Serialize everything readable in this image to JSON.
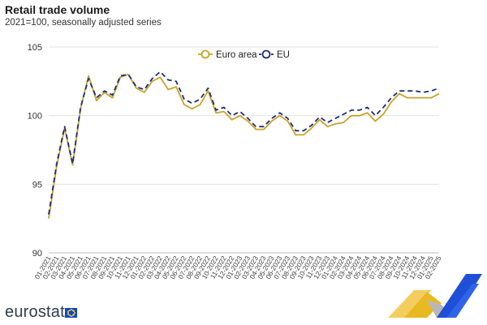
{
  "header": {
    "title": "Retail trade volume",
    "subtitle": "2021=100, seasonally adjusted series"
  },
  "brand": {
    "name": "eurostat"
  },
  "colors": {
    "euro_area": "#c9a227",
    "eu": "#1f2f7a",
    "grid": "#e3e3e3"
  },
  "chart_data": {
    "type": "line",
    "title": "Retail trade volume",
    "subtitle": "2021=100, seasonally adjusted series",
    "xlabel": "",
    "ylabel": "",
    "ylim": [
      90,
      105
    ],
    "yticks": [
      90,
      95,
      100,
      105
    ],
    "grid": true,
    "legend_position": "top-center",
    "categories": [
      "01-2021",
      "02-2021",
      "03-2021",
      "04-2021",
      "05-2021",
      "06-2021",
      "07-2021",
      "08-2021",
      "09-2021",
      "10-2021",
      "11-2021",
      "12-2021",
      "01-2022",
      "02-2022",
      "03-2022",
      "04-2022",
      "05-2022",
      "06-2022",
      "07-2022",
      "08-2022",
      "09-2022",
      "10-2022",
      "11-2022",
      "12-2022",
      "01-2023",
      "02-2023",
      "03-2023",
      "04-2023",
      "05-2023",
      "06-2023",
      "07-2023",
      "08-2023",
      "09-2023",
      "10-2023",
      "11-2023",
      "12-2023",
      "01-2024",
      "02-2024",
      "03-2024",
      "04-2024",
      "05-2024",
      "06-2024",
      "07-2024",
      "08-2024",
      "09-2024",
      "10-2024",
      "11-2024",
      "12-2024",
      "01-2025",
      "02-2025"
    ],
    "series": [
      {
        "name": "Euro area",
        "style": "solid",
        "values": [
          92.5,
          96.3,
          99.1,
          96.4,
          100.5,
          102.9,
          101.1,
          101.7,
          101.3,
          102.8,
          103.0,
          102.0,
          101.7,
          102.5,
          102.8,
          101.9,
          102.1,
          100.8,
          100.5,
          100.8,
          101.8,
          100.2,
          100.3,
          99.7,
          100.0,
          99.6,
          99.0,
          99.0,
          99.6,
          100.0,
          99.6,
          98.6,
          98.6,
          99.1,
          99.7,
          99.2,
          99.4,
          99.5,
          100.0,
          100.0,
          100.2,
          99.6,
          100.1,
          101.0,
          101.6,
          101.3,
          101.3,
          101.3,
          101.3,
          101.6
        ]
      },
      {
        "name": "EU",
        "style": "dashed",
        "values": [
          92.8,
          96.5,
          99.2,
          96.5,
          100.6,
          102.7,
          101.3,
          101.8,
          101.5,
          102.9,
          103.0,
          102.1,
          101.9,
          102.7,
          103.2,
          102.6,
          102.5,
          101.2,
          100.9,
          101.2,
          102.0,
          100.4,
          100.6,
          100.0,
          100.3,
          99.8,
          99.2,
          99.2,
          99.8,
          100.2,
          99.8,
          98.9,
          98.9,
          99.3,
          99.9,
          99.5,
          99.8,
          100.1,
          100.4,
          100.4,
          100.6,
          100.0,
          100.6,
          101.3,
          101.8,
          101.8,
          101.8,
          101.7,
          101.8,
          102.0
        ]
      }
    ]
  }
}
